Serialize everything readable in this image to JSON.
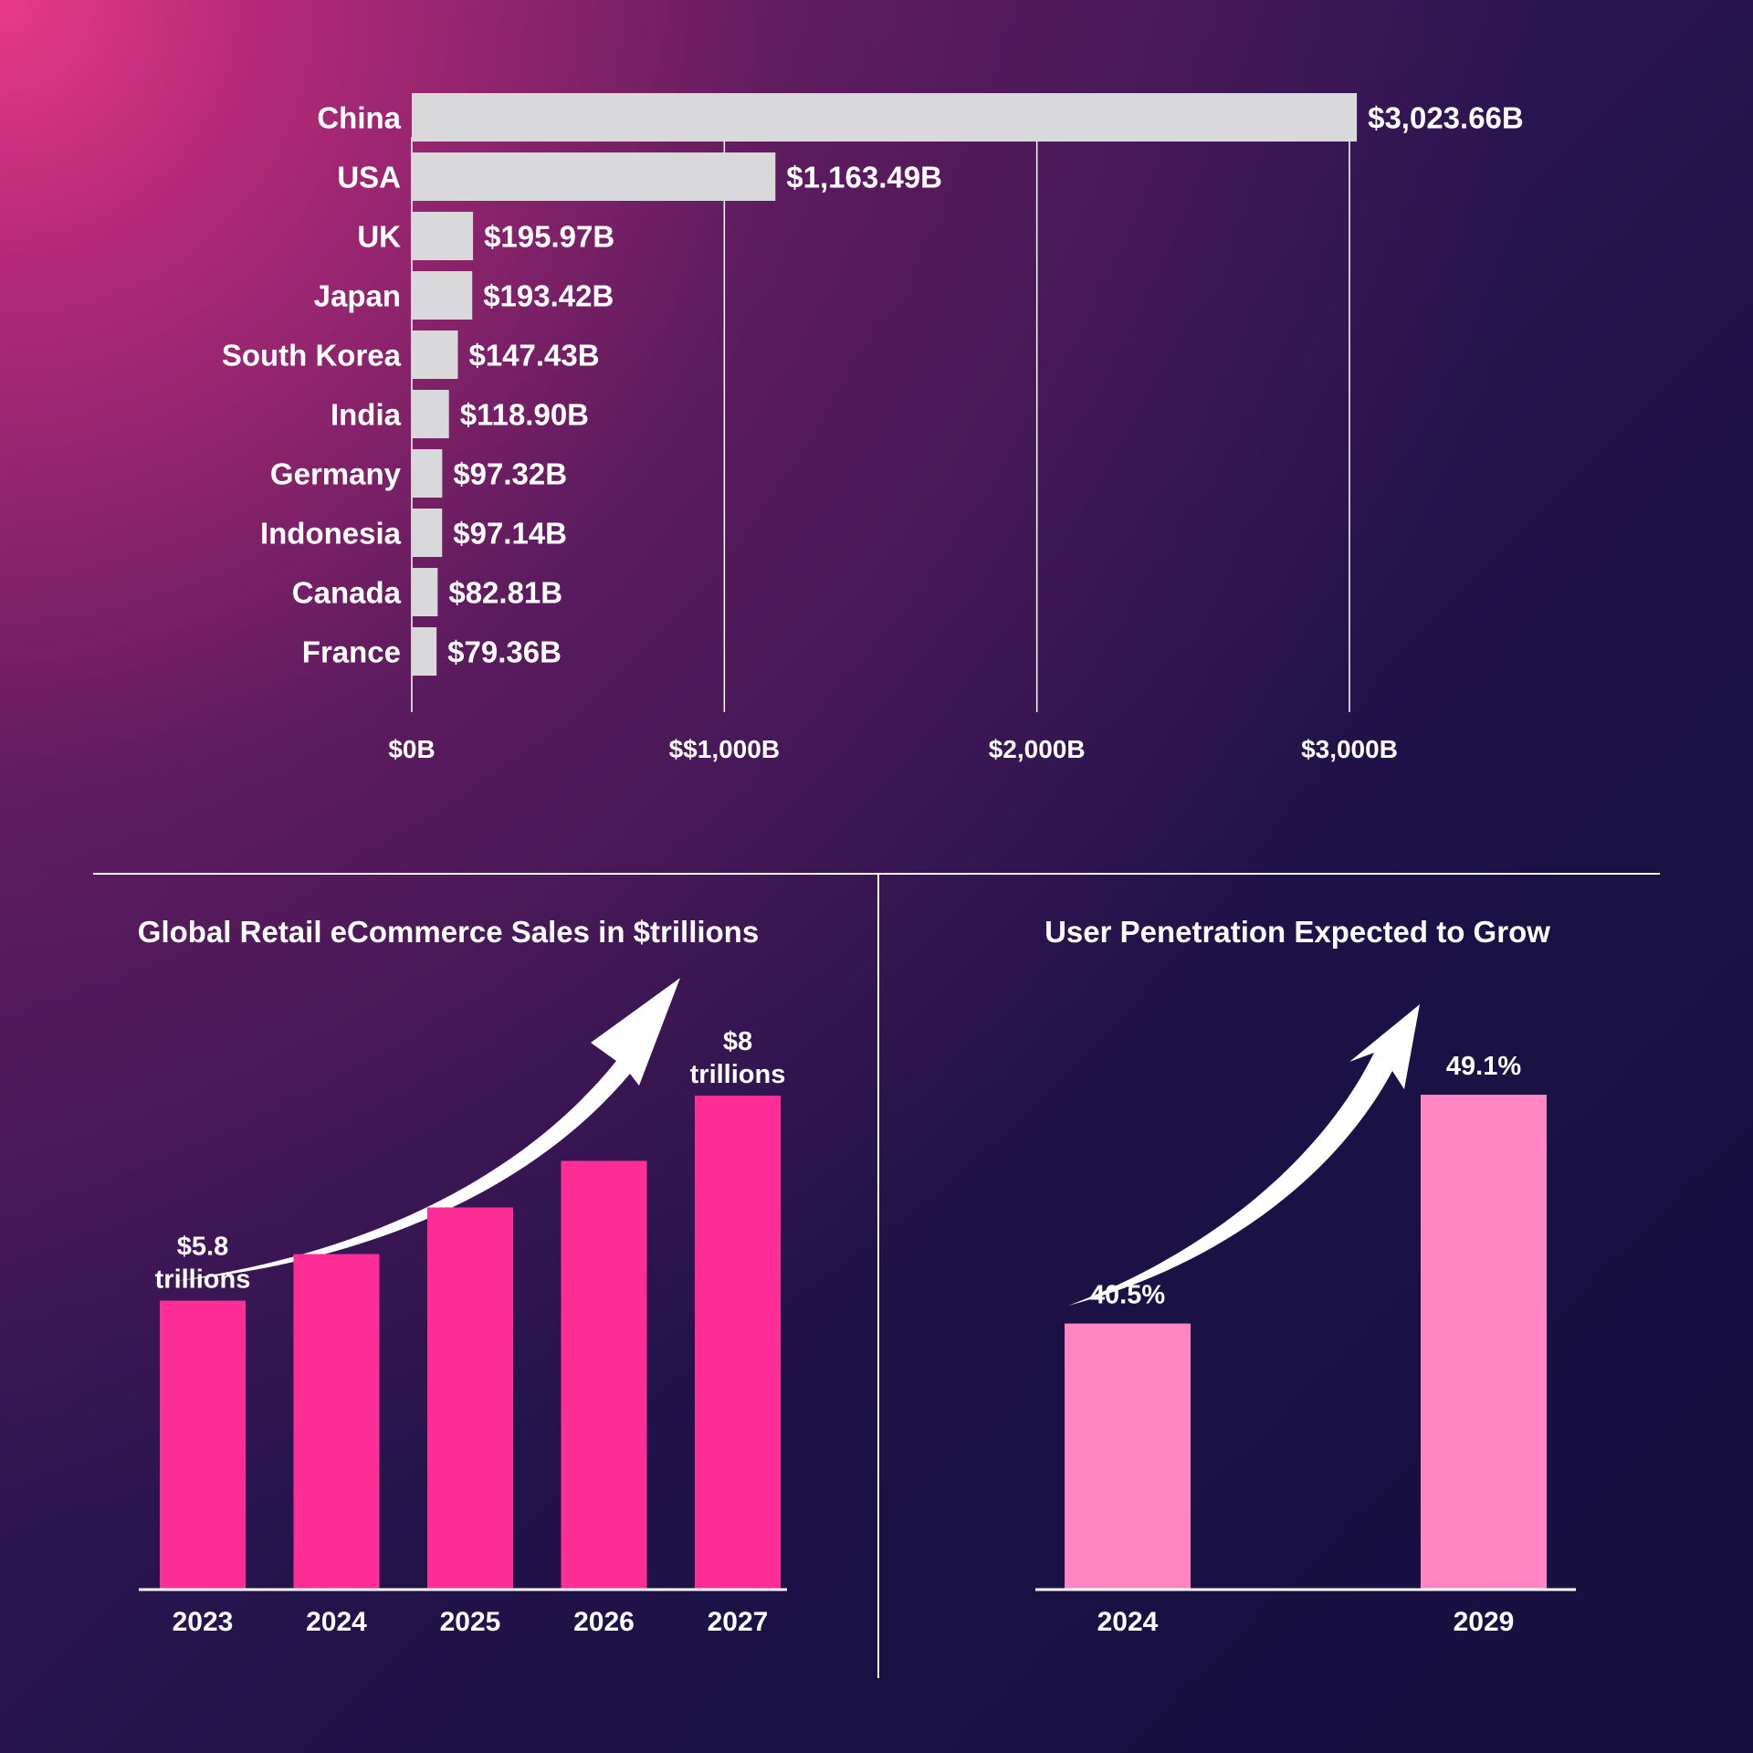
{
  "chart_data": [
    {
      "type": "bar",
      "orientation": "horizontal",
      "categories": [
        "China",
        "USA",
        "UK",
        "Japan",
        "South Korea",
        "India",
        "Germany",
        "Indonesia",
        "Canada",
        "France"
      ],
      "values": [
        3023.66,
        1163.49,
        195.97,
        193.42,
        147.43,
        118.9,
        97.32,
        97.14,
        82.81,
        79.36
      ],
      "value_labels": [
        "$3,023.66B",
        "$1,163.49B",
        "$195.97B",
        "$193.42B",
        "$147.43B",
        "$118.90B",
        "$97.32B",
        "$97.14B",
        "$82.81B",
        "$79.36B"
      ],
      "xlim": [
        0,
        3000
      ],
      "x_ticks": [
        0,
        1000,
        2000,
        3000
      ],
      "x_tick_labels": [
        "$0B",
        "$$1,000B",
        "$2,000B",
        "$3,000B"
      ],
      "grid": true,
      "title": "",
      "bar_color": "#d9d9db"
    },
    {
      "type": "bar",
      "title": "Global Retail eCommerce Sales in $trillions",
      "categories": [
        "2023",
        "2024",
        "2025",
        "2026",
        "2027"
      ],
      "values": [
        5.8,
        6.3,
        6.8,
        7.3,
        8.0
      ],
      "annotations": [
        {
          "category": "2023",
          "line1": "$5.8",
          "line2": "trillions"
        },
        {
          "category": "2027",
          "line1": "$8",
          "line2": "trillions"
        }
      ],
      "ylim": [
        2.7,
        8.0
      ],
      "bar_color": "#ff2d96",
      "trend_arrow": true
    },
    {
      "type": "bar",
      "title": "User Penetration Expected to Grow",
      "categories": [
        "2024",
        "2029"
      ],
      "values": [
        40.5,
        49.1
      ],
      "value_labels": [
        "40.5%",
        "49.1%"
      ],
      "ylim": [
        30.5,
        49.1
      ],
      "bar_color": "#ff85c3",
      "trend_arrow": true
    }
  ]
}
